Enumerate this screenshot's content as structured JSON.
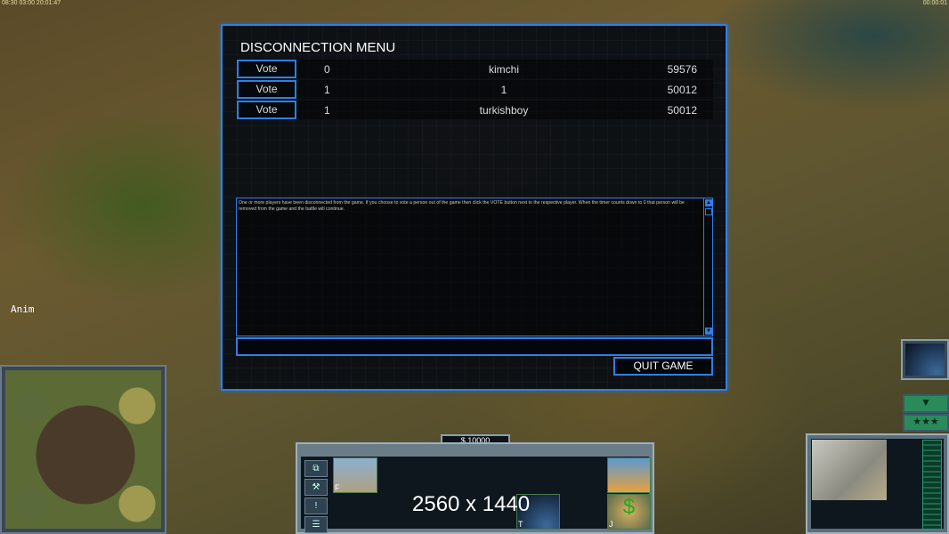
{
  "hud": {
    "top_left": "08:30 03:00 20:01:47",
    "top_right": "00:00:01",
    "anim_label": "Anim",
    "resolution_overlay": "2560 x 1440"
  },
  "dialog": {
    "title": "DISCONNECTION MENU",
    "players": [
      {
        "vote_label": "Vote",
        "votes": "0",
        "name": "kimchi",
        "ping": "59576"
      },
      {
        "vote_label": "Vote",
        "votes": "1",
        "name": "1",
        "ping": "50012"
      },
      {
        "vote_label": "Vote",
        "votes": "1",
        "name": "turkishboy",
        "ping": "50012"
      }
    ],
    "message": "One or more players have been disconnected from the game. If you choose to vote a person out of the game then click the VOTE button next to the respective player. When the timer counts down to 0 that person will be removed from the game and the battle will continue.",
    "chat_input_value": "",
    "quit_label": "QUIT GAME"
  },
  "control_bar": {
    "money": "$ 10000",
    "hotkeys": [
      "F",
      "T",
      "J"
    ],
    "side_buttons": [
      "select-group-icon",
      "repair-icon",
      "alert-icon",
      "options-icon"
    ]
  },
  "colors": {
    "accent": "#2f7fe6",
    "dialog_bg": "#080c12",
    "rank_green": "#2a8a5a"
  }
}
